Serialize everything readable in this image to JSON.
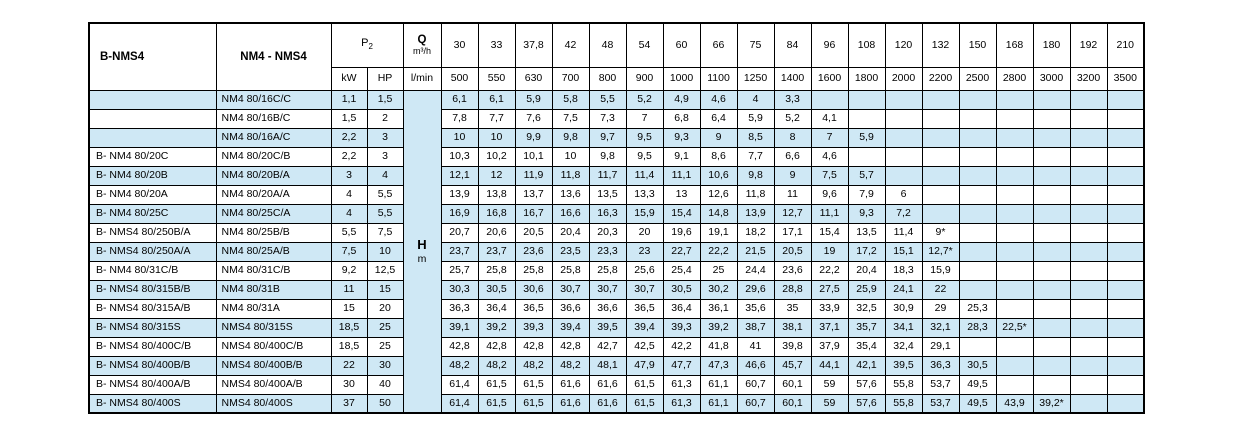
{
  "colors": {
    "row_alt": "#cfe8f5",
    "border": "#000000",
    "background": "#ffffff"
  },
  "table": {
    "header": {
      "col1": "B-NMS4",
      "col2": "NM4 - NMS4",
      "p2_base": "P",
      "p2_sub": "2",
      "kw": "kW",
      "hp": "HP",
      "q_label": "Q",
      "q_unit": "m³/h",
      "lmin": "l/min",
      "h_label": "H",
      "m_label": "m",
      "flows_m3h": [
        "30",
        "33",
        "37,8",
        "42",
        "48",
        "54",
        "60",
        "66",
        "75",
        "84",
        "96",
        "108",
        "120",
        "132",
        "150",
        "168",
        "180",
        "192",
        "210"
      ],
      "flows_lmin": [
        "500",
        "550",
        "630",
        "700",
        "800",
        "900",
        "1000",
        "1100",
        "1250",
        "1400",
        "1600",
        "1800",
        "2000",
        "2200",
        "2500",
        "2800",
        "3000",
        "3200",
        "3500"
      ]
    },
    "rows": [
      {
        "b": "",
        "model": "NM4 80/16C/C",
        "kw": "1,1",
        "hp": "1,5",
        "values": [
          "6,1",
          "6,1",
          "5,9",
          "5,8",
          "5,5",
          "5,2",
          "4,9",
          "4,6",
          "4",
          "3,3",
          "",
          "",
          "",
          "",
          "",
          "",
          "",
          "",
          ""
        ]
      },
      {
        "b": "",
        "model": "NM4 80/16B/C",
        "kw": "1,5",
        "hp": "2",
        "values": [
          "7,8",
          "7,7",
          "7,6",
          "7,5",
          "7,3",
          "7",
          "6,8",
          "6,4",
          "5,9",
          "5,2",
          "4,1",
          "",
          "",
          "",
          "",
          "",
          "",
          "",
          ""
        ]
      },
      {
        "b": "",
        "model": "NM4 80/16A/C",
        "kw": "2,2",
        "hp": "3",
        "values": [
          "10",
          "10",
          "9,9",
          "9,8",
          "9,7",
          "9,5",
          "9,3",
          "9",
          "8,5",
          "8",
          "7",
          "5,9",
          "",
          "",
          "",
          "",
          "",
          "",
          ""
        ]
      },
      {
        "b": "B- NM4 80/20C",
        "model": "NM4 80/20C/B",
        "kw": "2,2",
        "hp": "3",
        "values": [
          "10,3",
          "10,2",
          "10,1",
          "10",
          "9,8",
          "9,5",
          "9,1",
          "8,6",
          "7,7",
          "6,6",
          "4,6",
          "",
          "",
          "",
          "",
          "",
          "",
          "",
          ""
        ]
      },
      {
        "b": "B- NM4 80/20B",
        "model": "NM4 80/20B/A",
        "kw": "3",
        "hp": "4",
        "values": [
          "12,1",
          "12",
          "11,9",
          "11,8",
          "11,7",
          "11,4",
          "11,1",
          "10,6",
          "9,8",
          "9",
          "7,5",
          "5,7",
          "",
          "",
          "",
          "",
          "",
          "",
          ""
        ]
      },
      {
        "b": "B- NM4 80/20A",
        "model": "NM4 80/20A/A",
        "kw": "4",
        "hp": "5,5",
        "values": [
          "13,9",
          "13,8",
          "13,7",
          "13,6",
          "13,5",
          "13,3",
          "13",
          "12,6",
          "11,8",
          "11",
          "9,6",
          "7,9",
          "6",
          "",
          "",
          "",
          "",
          "",
          ""
        ]
      },
      {
        "b": "B- NM4 80/25C",
        "model": "NM4 80/25C/A",
        "kw": "4",
        "hp": "5,5",
        "values": [
          "16,9",
          "16,8",
          "16,7",
          "16,6",
          "16,3",
          "15,9",
          "15,4",
          "14,8",
          "13,9",
          "12,7",
          "11,1",
          "9,3",
          "7,2",
          "",
          "",
          "",
          "",
          "",
          ""
        ]
      },
      {
        "b": "B- NMS4 80/250B/A",
        "model": "NM4 80/25B/B",
        "kw": "5,5",
        "hp": "7,5",
        "values": [
          "20,7",
          "20,6",
          "20,5",
          "20,4",
          "20,3",
          "20",
          "19,6",
          "19,1",
          "18,2",
          "17,1",
          "15,4",
          "13,5",
          "11,4",
          "9*",
          "",
          "",
          "",
          "",
          ""
        ]
      },
      {
        "b": "B- NMS4 80/250A/A",
        "model": "NM4 80/25A/B",
        "kw": "7,5",
        "hp": "10",
        "values": [
          "23,7",
          "23,7",
          "23,6",
          "23,5",
          "23,3",
          "23",
          "22,7",
          "22,2",
          "21,5",
          "20,5",
          "19",
          "17,2",
          "15,1",
          "12,7*",
          "",
          "",
          "",
          "",
          ""
        ]
      },
      {
        "b": "B- NM4 80/31C/B",
        "model": "NM4 80/31C/B",
        "kw": "9,2",
        "hp": "12,5",
        "values": [
          "25,7",
          "25,8",
          "25,8",
          "25,8",
          "25,8",
          "25,6",
          "25,4",
          "25",
          "24,4",
          "23,6",
          "22,2",
          "20,4",
          "18,3",
          "15,9",
          "",
          "",
          "",
          "",
          ""
        ]
      },
      {
        "b": "B- NMS4 80/315B/B",
        "model": "NM4 80/31B",
        "kw": "11",
        "hp": "15",
        "values": [
          "30,3",
          "30,5",
          "30,6",
          "30,7",
          "30,7",
          "30,7",
          "30,5",
          "30,2",
          "29,6",
          "28,8",
          "27,5",
          "25,9",
          "24,1",
          "22",
          "",
          "",
          "",
          "",
          ""
        ]
      },
      {
        "b": "B- NMS4 80/315A/B",
        "model": "NM4 80/31A",
        "kw": "15",
        "hp": "20",
        "values": [
          "36,3",
          "36,4",
          "36,5",
          "36,6",
          "36,6",
          "36,5",
          "36,4",
          "36,1",
          "35,6",
          "35",
          "33,9",
          "32,5",
          "30,9",
          "29",
          "25,3",
          "",
          "",
          "",
          ""
        ]
      },
      {
        "b": "B- NMS4 80/315S",
        "model": "NMS4 80/315S",
        "kw": "18,5",
        "hp": "25",
        "values": [
          "39,1",
          "39,2",
          "39,3",
          "39,4",
          "39,5",
          "39,4",
          "39,3",
          "39,2",
          "38,7",
          "38,1",
          "37,1",
          "35,7",
          "34,1",
          "32,1",
          "28,3",
          "22,5*",
          "",
          "",
          ""
        ]
      },
      {
        "b": "B- NMS4 80/400C/B",
        "model": "NMS4 80/400C/B",
        "kw": "18,5",
        "hp": "25",
        "values": [
          "42,8",
          "42,8",
          "42,8",
          "42,8",
          "42,7",
          "42,5",
          "42,2",
          "41,8",
          "41",
          "39,8",
          "37,9",
          "35,4",
          "32,4",
          "29,1",
          "",
          "",
          "",
          "",
          ""
        ]
      },
      {
        "b": "B- NMS4 80/400B/B",
        "model": "NMS4 80/400B/B",
        "kw": "22",
        "hp": "30",
        "values": [
          "48,2",
          "48,2",
          "48,2",
          "48,2",
          "48,1",
          "47,9",
          "47,7",
          "47,3",
          "46,6",
          "45,7",
          "44,1",
          "42,1",
          "39,5",
          "36,3",
          "30,5",
          "",
          "",
          "",
          ""
        ]
      },
      {
        "b": "B- NMS4 80/400A/B",
        "model": "NMS4 80/400A/B",
        "kw": "30",
        "hp": "40",
        "values": [
          "61,4",
          "61,5",
          "61,5",
          "61,6",
          "61,6",
          "61,5",
          "61,3",
          "61,1",
          "60,7",
          "60,1",
          "59",
          "57,6",
          "55,8",
          "53,7",
          "49,5",
          "",
          "",
          "",
          ""
        ]
      },
      {
        "b": "B- NMS4 80/400S",
        "model": "NMS4 80/400S",
        "kw": "37",
        "hp": "50",
        "values": [
          "61,4",
          "61,5",
          "61,5",
          "61,6",
          "61,6",
          "61,5",
          "61,3",
          "61,1",
          "60,7",
          "60,1",
          "59",
          "57,6",
          "55,8",
          "53,7",
          "49,5",
          "43,9",
          "39,2*",
          "",
          ""
        ]
      }
    ]
  }
}
